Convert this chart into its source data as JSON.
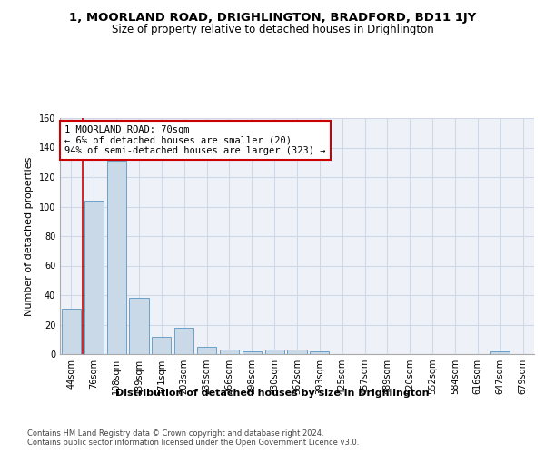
{
  "title_line1": "1, MOORLAND ROAD, DRIGHLINGTON, BRADFORD, BD11 1JY",
  "title_line2": "Size of property relative to detached houses in Drighlington",
  "xlabel": "Distribution of detached houses by size in Drighlington",
  "ylabel": "Number of detached properties",
  "bar_labels": [
    "44sqm",
    "76sqm",
    "108sqm",
    "139sqm",
    "171sqm",
    "203sqm",
    "235sqm",
    "266sqm",
    "298sqm",
    "330sqm",
    "362sqm",
    "393sqm",
    "425sqm",
    "457sqm",
    "489sqm",
    "520sqm",
    "552sqm",
    "584sqm",
    "616sqm",
    "647sqm",
    "679sqm"
  ],
  "bar_values": [
    31,
    104,
    131,
    38,
    12,
    18,
    5,
    3,
    2,
    3,
    3,
    2,
    0,
    0,
    0,
    0,
    0,
    0,
    0,
    2,
    0
  ],
  "bar_color": "#c9d9e8",
  "bar_edgecolor": "#6ca0c8",
  "grid_color": "#d0d8e8",
  "bg_color": "#eef2f8",
  "annotation_text": "1 MOORLAND ROAD: 70sqm\n← 6% of detached houses are smaller (20)\n94% of semi-detached houses are larger (323) →",
  "annotation_box_edgecolor": "#cc0000",
  "property_line_x": 0.5,
  "ylim": [
    0,
    160
  ],
  "yticks": [
    0,
    20,
    40,
    60,
    80,
    100,
    120,
    140,
    160
  ],
  "footer_text": "Contains HM Land Registry data © Crown copyright and database right 2024.\nContains public sector information licensed under the Open Government Licence v3.0.",
  "title_fontsize": 9.5,
  "subtitle_fontsize": 8.5,
  "axis_label_fontsize": 8,
  "tick_fontsize": 7,
  "annotation_fontsize": 7.5,
  "footer_fontsize": 6
}
